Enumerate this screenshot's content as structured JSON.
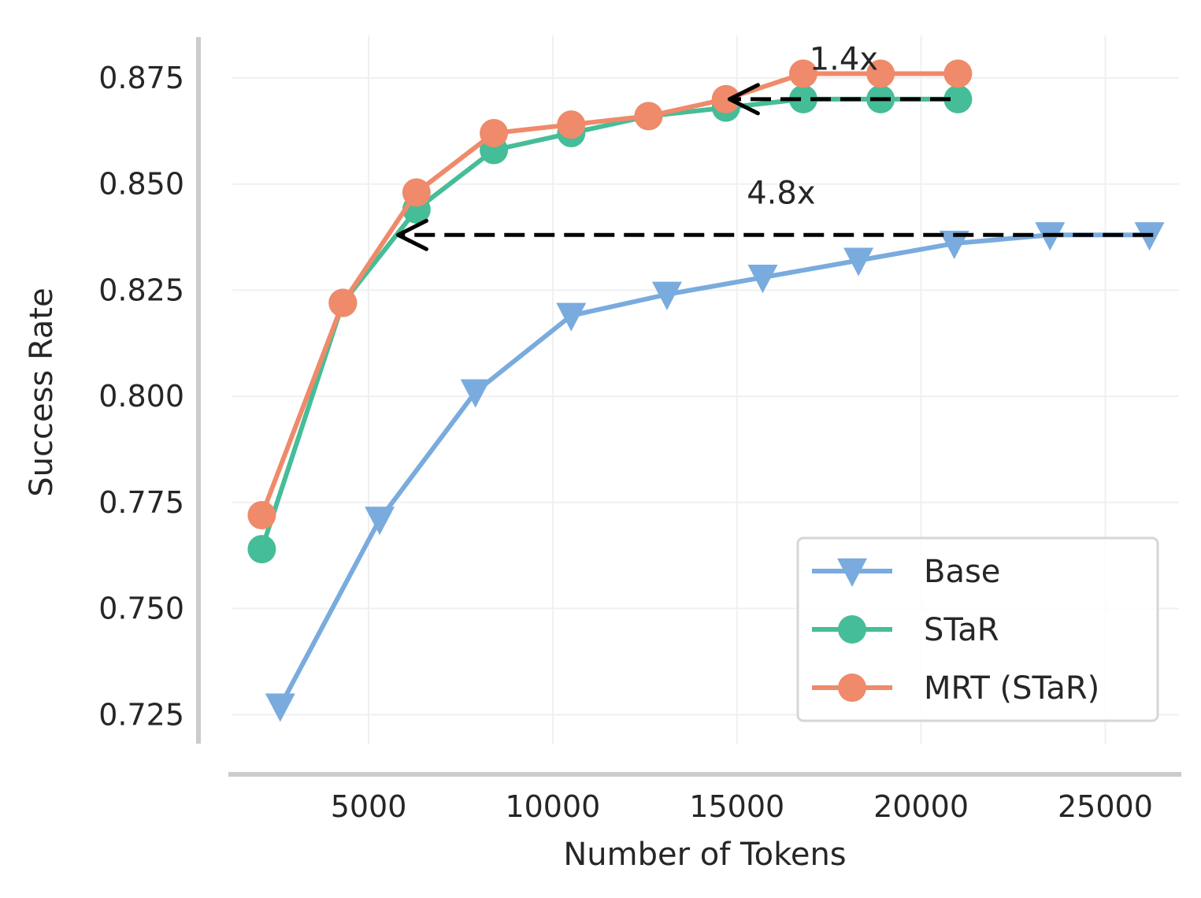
{
  "chart_data": {
    "type": "line",
    "title": "",
    "xlabel": "Number of Tokens",
    "ylabel": "Success Rate",
    "xlim": [
      1300,
      27000
    ],
    "ylim": [
      0.718,
      0.885
    ],
    "xticks": [
      5000,
      10000,
      15000,
      20000,
      25000
    ],
    "xtick_labels": [
      "5000",
      "10000",
      "15000",
      "20000",
      "25000"
    ],
    "yticks": [
      0.725,
      0.75,
      0.775,
      0.8,
      0.825,
      0.85,
      0.875
    ],
    "ytick_labels": [
      "0.725",
      "0.750",
      "0.775",
      "0.800",
      "0.825",
      "0.850",
      "0.875"
    ],
    "grid": true,
    "legend_position": "lower-right",
    "series": [
      {
        "name": "Base",
        "color": "#7aabde",
        "marker": "triangle-down",
        "x": [
          2600,
          5300,
          7900,
          10500,
          13100,
          15700,
          18300,
          20900,
          23500,
          26200
        ],
        "y": [
          0.727,
          0.771,
          0.801,
          0.819,
          0.824,
          0.828,
          0.832,
          0.836,
          0.838,
          0.838
        ]
      },
      {
        "name": "STaR",
        "color": "#45bd98",
        "marker": "circle",
        "x": [
          2100,
          4300,
          6300,
          8400,
          10500,
          12600,
          14700,
          16800,
          18900,
          21000
        ],
        "y": [
          0.764,
          0.822,
          0.844,
          0.858,
          0.862,
          0.866,
          0.868,
          0.87,
          0.87,
          0.87
        ]
      },
      {
        "name": "MRT (STaR)",
        "color": "#ef8a6a",
        "marker": "circle",
        "x": [
          2100,
          4300,
          6300,
          8400,
          10500,
          12600,
          14700,
          16800,
          18900,
          21000
        ],
        "y": [
          0.772,
          0.822,
          0.848,
          0.862,
          0.864,
          0.866,
          0.87,
          0.876,
          0.876,
          0.876
        ]
      }
    ],
    "annotations": [
      {
        "label": "1.4x",
        "arrow_from": [
          20800,
          0.87
        ],
        "arrow_to": [
          14800,
          0.87
        ],
        "text_at": [
          17900,
          0.8795
        ]
      },
      {
        "label": "4.8x",
        "arrow_from": [
          26300,
          0.838
        ],
        "arrow_to": [
          5800,
          0.838
        ],
        "text_at": [
          16200,
          0.848
        ]
      }
    ]
  }
}
